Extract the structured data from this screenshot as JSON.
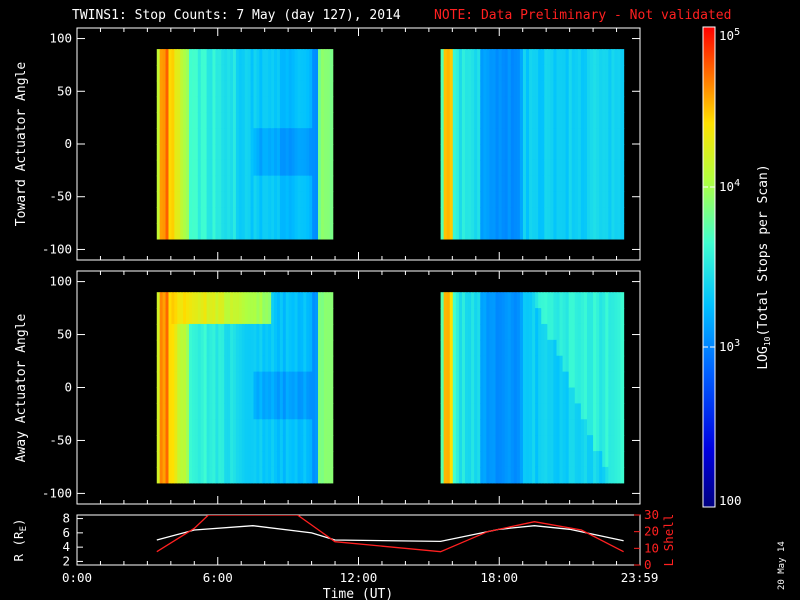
{
  "title": "TWINS1: Stop Counts:  7 May (day 127), 2014",
  "note": "NOTE: Data Preliminary - Not validated",
  "date_stamp": "20 May 14",
  "colors": {
    "axis": "#ffffff",
    "note": "#ff2020",
    "radius_line": "#ffffff",
    "lshell_line": "#ff2020"
  },
  "chart_data": [
    {
      "type": "heatmap",
      "ylabel": "Toward Actuator Angle",
      "ylim": [
        -110,
        110
      ],
      "yticks": [
        -100,
        -50,
        0,
        50,
        100
      ],
      "xlim": [
        0,
        24
      ],
      "data_blocks": [
        {
          "t_start": 3.4,
          "t_end": 10.9,
          "angle_min": -90,
          "angle_max": 90
        },
        {
          "t_start": 15.5,
          "t_end": 23.3,
          "angle_min": -90,
          "angle_max": 90
        }
      ]
    },
    {
      "type": "heatmap",
      "ylabel": "Away Actuator Angle",
      "ylim": [
        -110,
        110
      ],
      "yticks": [
        -100,
        -50,
        0,
        50,
        100
      ],
      "xlim": [
        0,
        24
      ],
      "data_blocks": [
        {
          "t_start": 3.4,
          "t_end": 10.9,
          "angle_min": -90,
          "angle_max": 90
        },
        {
          "t_start": 15.5,
          "t_end": 23.3,
          "angle_min": -90,
          "angle_max": 90
        }
      ]
    },
    {
      "type": "line",
      "xlabel": "Time (UT)",
      "xlim": [
        0,
        24
      ],
      "xticks": [
        0,
        6,
        12,
        18,
        23.983
      ],
      "xtick_labels": [
        "0:00",
        "6:00",
        "12:00",
        "18:00",
        "23:59"
      ],
      "ylabel_left": "R (R",
      "ylabel_left_sub": "E",
      "ylabel_left_close": ")",
      "ylim_left": [
        1.5,
        8.5
      ],
      "yticks_left": [
        2,
        4,
        6,
        8
      ],
      "ylabel_right": "L Shell",
      "ylim_right": [
        0,
        30
      ],
      "yticks_right": [
        0,
        10,
        20,
        30
      ],
      "series": [
        {
          "axis": "left",
          "x": [
            3.4,
            5,
            7.5,
            10,
            11,
            15.5,
            18,
            19.5,
            21,
            23.3
          ],
          "y": [
            5.0,
            6.4,
            7.0,
            6.0,
            5.0,
            4.8,
            6.5,
            7.0,
            6.5,
            4.9
          ]
        },
        {
          "axis": "right",
          "x": [
            3.4,
            5.0,
            5.6,
            9.4,
            10.0,
            11.0,
            15.5,
            17.5,
            19.5,
            21.5,
            23.3
          ],
          "y": [
            8.0,
            22.0,
            30.0,
            30.0,
            24.0,
            14.0,
            8.0,
            20.0,
            26.0,
            21.0,
            8.0
          ]
        }
      ]
    }
  ],
  "colorbar": {
    "label_pre": "LOG",
    "label_sub": "10",
    "label_post": "(Total Stops per Scan)",
    "range": [
      100,
      100000
    ],
    "tick_labels": [
      {
        "value": 100,
        "base": "100",
        "exp": ""
      },
      {
        "value": 1000,
        "base": "10",
        "exp": "3"
      },
      {
        "value": 10000,
        "base": "10",
        "exp": "4"
      },
      {
        "value": 100000,
        "base": "10",
        "exp": "5"
      }
    ]
  }
}
